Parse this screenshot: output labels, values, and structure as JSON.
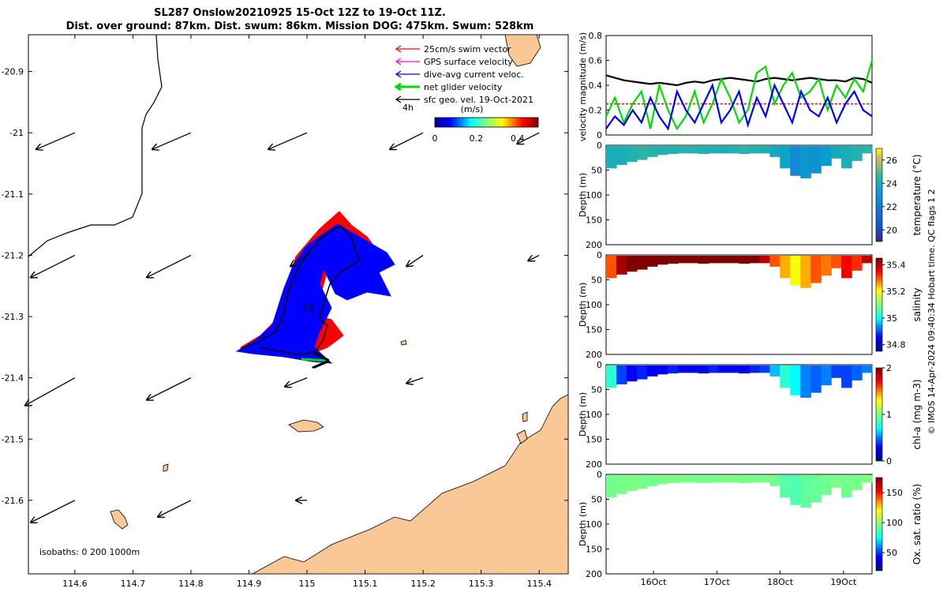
{
  "title_line1": "SL287 Onslow20210925 15-Oct 12Z to 19-Oct 11Z.",
  "title_line2": "Dist. over ground: 87km. Dist. swum: 86km. Mission DOG: 475km. Swum: 528km",
  "map": {
    "x_ticks": [
      "114.6",
      "114.7",
      "114.8",
      "114.9",
      "115",
      "115.1",
      "115.2",
      "115.3",
      "115.4"
    ],
    "y_ticks": [
      "-20.9",
      "-21",
      "-21.1",
      "-21.2",
      "-21.3",
      "-21.4",
      "-21.5",
      "-21.6"
    ],
    "xlim": [
      114.52,
      115.45
    ],
    "ylim": [
      -21.72,
      -20.84
    ],
    "legend": [
      {
        "label": "25cm/s swim vector",
        "color": "#ff0000"
      },
      {
        "label": "GPS surface velocity",
        "color": "#ff00ff"
      },
      {
        "label": "dive-avg current veloc.",
        "color": "#0000ff"
      },
      {
        "label": "net glider velocity",
        "color": "#00dd00"
      },
      {
        "label": "sfc geo. vel. 19-Oct-2021",
        "color": "#000000"
      }
    ],
    "legend_scale_label": "4h",
    "colorbar_title": "(m/s)",
    "colorbar_ticks": [
      "0",
      "0.2",
      "0.4"
    ],
    "colorbar_range": [
      0,
      0.5
    ],
    "track_day_label": "19",
    "isobaths_label": "isobaths: 0   200  1000m",
    "land_color": "#f9c896",
    "current_vectors": [
      {
        "lon": 114.6,
        "lat": -21.0,
        "u": -0.35,
        "v": -0.15
      },
      {
        "lon": 114.8,
        "lat": -21.0,
        "u": -0.35,
        "v": -0.15
      },
      {
        "lon": 115.0,
        "lat": -21.0,
        "u": -0.35,
        "v": -0.15
      },
      {
        "lon": 115.2,
        "lat": -21.0,
        "u": -0.3,
        "v": -0.15
      },
      {
        "lon": 115.4,
        "lat": -21.0,
        "u": -0.2,
        "v": -0.1
      },
      {
        "lon": 114.6,
        "lat": -21.2,
        "u": -0.4,
        "v": -0.2
      },
      {
        "lon": 114.8,
        "lat": -21.2,
        "u": -0.4,
        "v": -0.2
      },
      {
        "lon": 115.0,
        "lat": -21.2,
        "u": -0.15,
        "v": -0.1
      },
      {
        "lon": 115.2,
        "lat": -21.2,
        "u": -0.15,
        "v": -0.1
      },
      {
        "lon": 115.4,
        "lat": -21.2,
        "u": -0.1,
        "v": -0.05
      },
      {
        "lon": 114.6,
        "lat": -21.4,
        "u": -0.45,
        "v": -0.25
      },
      {
        "lon": 114.8,
        "lat": -21.4,
        "u": -0.4,
        "v": -0.2
      },
      {
        "lon": 115.0,
        "lat": -21.4,
        "u": -0.2,
        "v": -0.08
      },
      {
        "lon": 115.2,
        "lat": -21.4,
        "u": -0.15,
        "v": -0.05
      },
      {
        "lon": 114.6,
        "lat": -21.6,
        "u": -0.4,
        "v": -0.2
      },
      {
        "lon": 114.8,
        "lat": -21.6,
        "u": -0.3,
        "v": -0.15
      },
      {
        "lon": 115.0,
        "lat": -21.6,
        "u": -0.1,
        "v": 0.0
      }
    ]
  },
  "velocity_panel": {
    "ylabel": "velocity magnitude (m/s)",
    "ylim": [
      0,
      0.8
    ],
    "y_ticks": [
      "0",
      "0.2",
      "0.4",
      "0.6",
      "0.8"
    ],
    "series": [
      {
        "color": "#000000",
        "values": [
          0.48,
          0.46,
          0.44,
          0.43,
          0.42,
          0.41,
          0.42,
          0.41,
          0.4,
          0.42,
          0.43,
          0.42,
          0.44,
          0.45,
          0.46,
          0.45,
          0.44,
          0.43,
          0.45,
          0.46,
          0.45,
          0.44,
          0.45,
          0.46,
          0.45,
          0.44,
          0.44,
          0.43,
          0.46,
          0.45,
          0.42
        ]
      },
      {
        "color": "#ff0000",
        "values": [
          0.25,
          0.25,
          0.25,
          0.25,
          0.25,
          0.25,
          0.25,
          0.25,
          0.25,
          0.25,
          0.25,
          0.25,
          0.25,
          0.25,
          0.25,
          0.25,
          0.25,
          0.25,
          0.25,
          0.25,
          0.25,
          0.25,
          0.25,
          0.25,
          0.25,
          0.25,
          0.25,
          0.25,
          0.25,
          0.25,
          0.25
        ]
      },
      {
        "color": "#00dd00",
        "values": [
          0.15,
          0.3,
          0.1,
          0.25,
          0.35,
          0.05,
          0.4,
          0.2,
          0.05,
          0.15,
          0.35,
          0.1,
          0.25,
          0.45,
          0.3,
          0.1,
          0.2,
          0.5,
          0.55,
          0.25,
          0.4,
          0.5,
          0.3,
          0.35,
          0.45,
          0.2,
          0.4,
          0.3,
          0.45,
          0.35,
          0.6
        ]
      },
      {
        "color": "#0000ff",
        "values": [
          0.05,
          0.15,
          0.08,
          0.2,
          0.1,
          0.3,
          0.15,
          0.05,
          0.35,
          0.2,
          0.1,
          0.25,
          0.4,
          0.1,
          0.2,
          0.35,
          0.08,
          0.3,
          0.15,
          0.4,
          0.25,
          0.1,
          0.35,
          0.2,
          0.15,
          0.3,
          0.1,
          0.25,
          0.35,
          0.2,
          0.15
        ]
      }
    ]
  },
  "profiles": [
    {
      "ylabel": "temperature (°C)",
      "cb_ticks": [
        "20",
        "22",
        "24",
        "26"
      ],
      "cb_range": [
        19,
        27
      ],
      "cmap": "parula",
      "values": [
        24,
        24,
        24.2,
        24.5,
        24.3,
        24.1,
        24.2,
        24.4,
        24.3,
        24.2,
        24.1,
        24,
        24.2,
        24.4,
        24.2,
        24,
        23.8,
        23.5,
        22.5,
        23,
        22.8,
        23.2,
        23.8,
        24,
        24.2,
        24.4
      ]
    },
    {
      "ylabel": "salinity",
      "cb_ticks": [
        "34.8",
        "35",
        "35.2",
        "35.4"
      ],
      "cb_range": [
        34.75,
        35.45
      ],
      "cmap": "jet",
      "values": [
        35.3,
        35.42,
        35.45,
        35.45,
        35.45,
        35.45,
        35.45,
        35.45,
        35.45,
        35.45,
        35.45,
        35.45,
        35.45,
        35.45,
        35.45,
        35.4,
        35.3,
        35.25,
        35.2,
        35.25,
        35.3,
        35.28,
        35.3,
        35.35,
        35.32,
        35.4
      ]
    },
    {
      "ylabel": "chl-a (mg m-3)",
      "cb_ticks": [
        "0",
        "1",
        "2"
      ],
      "cb_range": [
        0,
        2
      ],
      "cmap": "jet",
      "values": [
        0.8,
        0.4,
        0.3,
        0.35,
        0.3,
        0.3,
        0.35,
        0.3,
        0.28,
        0.3,
        0.35,
        0.3,
        0.3,
        0.3,
        0.35,
        0.4,
        0.6,
        0.8,
        0.7,
        0.5,
        0.45,
        0.5,
        0.4,
        0.4,
        0.45,
        0.5
      ]
    },
    {
      "ylabel": "Ox. sat. ratio (%)",
      "cb_ticks": [
        "50",
        "100",
        "150"
      ],
      "cb_range": [
        20,
        175
      ],
      "cmap": "jet",
      "values": [
        95,
        96,
        97,
        96,
        95,
        96,
        97,
        96,
        95,
        96,
        95,
        96,
        97,
        96,
        95,
        96,
        95,
        90,
        88,
        92,
        93,
        95,
        96,
        95,
        96,
        97
      ]
    }
  ],
  "profile_ylabel": "Depth (m)",
  "profile_y_ticks": [
    "0",
    "50",
    "100",
    "150",
    "200"
  ],
  "profile_x_ticks": [
    "16Oct",
    "17Oct",
    "18Oct",
    "19Oct"
  ],
  "credit": "© IMOS 14-Apr-2024 09:40:34 Hobart time. QC flags 1  2"
}
